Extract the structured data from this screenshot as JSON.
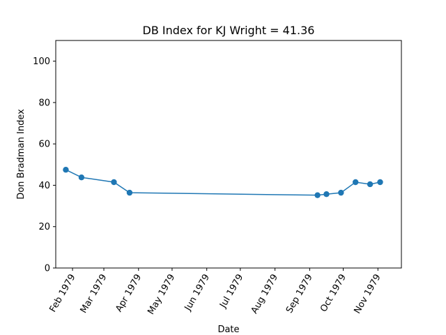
{
  "chart_data": {
    "type": "line",
    "title": "DB Index for KJ Wright = 41.36",
    "xlabel": "Date",
    "ylabel": "Don Bradman Index",
    "xlim": [
      "1979-01-17",
      "1979-11-22"
    ],
    "ylim": [
      0,
      110
    ],
    "x_ticks": [
      {
        "date": "1979-02-01",
        "label": "Feb 1979"
      },
      {
        "date": "1979-03-01",
        "label": "Mar 1979"
      },
      {
        "date": "1979-04-01",
        "label": "Apr 1979"
      },
      {
        "date": "1979-05-01",
        "label": "May 1979"
      },
      {
        "date": "1979-06-01",
        "label": "Jun 1979"
      },
      {
        "date": "1979-07-01",
        "label": "Jul 1979"
      },
      {
        "date": "1979-08-01",
        "label": "Aug 1979"
      },
      {
        "date": "1979-09-01",
        "label": "Sep 1979"
      },
      {
        "date": "1979-10-01",
        "label": "Oct 1979"
      },
      {
        "date": "1979-11-01",
        "label": "Nov 1979"
      }
    ],
    "y_ticks": [
      0,
      20,
      40,
      60,
      80,
      100
    ],
    "grid": false,
    "series": [
      {
        "color": "#1f77b4",
        "points": [
          {
            "x": "1979-01-26",
            "y": 47.5
          },
          {
            "x": "1979-02-09",
            "y": 43.8
          },
          {
            "x": "1979-03-10",
            "y": 41.5
          },
          {
            "x": "1979-03-24",
            "y": 36.4
          },
          {
            "x": "1979-09-08",
            "y": 35.2
          },
          {
            "x": "1979-09-16",
            "y": 35.7
          },
          {
            "x": "1979-09-29",
            "y": 36.4
          },
          {
            "x": "1979-10-12",
            "y": 41.5
          },
          {
            "x": "1979-10-25",
            "y": 40.5
          },
          {
            "x": "1979-11-03",
            "y": 41.5
          }
        ]
      }
    ]
  }
}
